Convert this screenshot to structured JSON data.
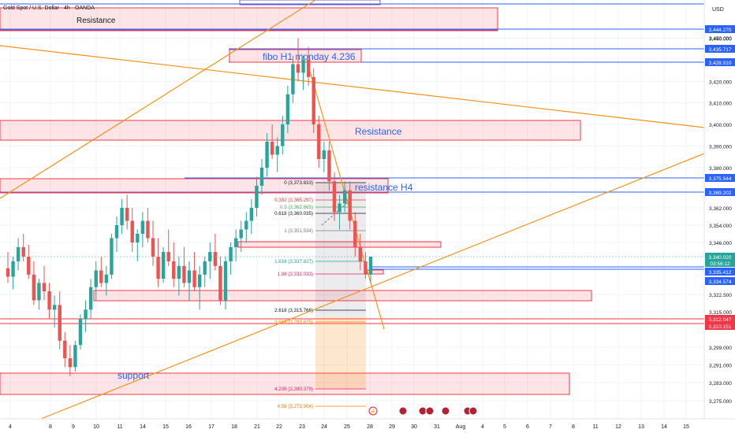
{
  "header": {
    "symbol_title": "Gold Spot / U.S. Dollar · 4h · OANDA"
  },
  "price_axis": {
    "currency": "USD",
    "ticks": [
      {
        "v": 3450.0,
        "label": "3,450.000"
      },
      {
        "v": 3440.0,
        "label": "3,440.000"
      },
      {
        "v": 3430.0,
        "label": "3,430.000"
      },
      {
        "v": 3420.0,
        "label": "3,420.000"
      },
      {
        "v": 3410.0,
        "label": "3,410.000"
      },
      {
        "v": 3400.0,
        "label": "3,400.000"
      },
      {
        "v": 3390.0,
        "label": "3,390.000"
      },
      {
        "v": 3380.0,
        "label": "3,380.000"
      },
      {
        "v": 3362.0,
        "label": "3,362.000"
      },
      {
        "v": 3354.0,
        "label": "3,354.000"
      },
      {
        "v": 3346.0,
        "label": "3,346.000"
      },
      {
        "v": 3322.5,
        "label": "3,322.500"
      },
      {
        "v": 3315.0,
        "label": "3,315.000"
      },
      {
        "v": 3299.0,
        "label": "3,299.000"
      },
      {
        "v": 3291.0,
        "label": "3,291.000"
      },
      {
        "v": 3283.0,
        "label": "3,283.000"
      },
      {
        "v": 3275.0,
        "label": "3,275.000"
      }
    ],
    "badges": [
      {
        "label": "3,444.270",
        "style": "blue"
      },
      {
        "label": "3,435.717",
        "style": "blue"
      },
      {
        "label": "3,428.910",
        "style": "blue"
      },
      {
        "label": "3,375.944",
        "style": "blue"
      },
      {
        "label": "3,369.202",
        "style": "blue"
      },
      {
        "label": "3,340.020",
        "style": "green"
      },
      {
        "label": "03:56:12",
        "style": "green"
      },
      {
        "label": "3,335.412",
        "style": "blue"
      },
      {
        "label": "3,334.574",
        "style": "blue"
      },
      {
        "label": "3,312.047",
        "style": "red"
      },
      {
        "label": "3,310.151",
        "style": "red"
      }
    ]
  },
  "time_axis": {
    "labels": [
      "4",
      "8",
      "9",
      "10",
      "11",
      "14",
      "15",
      "16",
      "17",
      "18",
      "21",
      "22",
      "23",
      "24",
      "25",
      "28",
      "29",
      "30",
      "31",
      "Aug",
      "4",
      "5",
      "6",
      "7",
      "8",
      "11",
      "12",
      "13",
      "14",
      "15"
    ]
  },
  "annotations": {
    "resistance_top": "Resistance",
    "fibo_label": "fibo H1 monday 4.236",
    "resistance_mid": "Resistance",
    "resistance_h4": "resistance H4",
    "support": "support"
  },
  "fib_levels": [
    {
      "ratio": "0",
      "price": "3,373.833",
      "text": "0 (3,373.833)",
      "color": "#131722"
    },
    {
      "ratio": "0.382",
      "price": "3,365.297",
      "text": "0.382 (3,365.297)",
      "color": "#e03c31"
    },
    {
      "ratio": "0.5",
      "price": "3,362.665",
      "text": "0.5 (3,362.665)",
      "color": "#4caf50"
    },
    {
      "ratio": "0.618",
      "price": "3,360.035",
      "text": "0.618 (3,360.035)",
      "color": "#131722"
    },
    {
      "ratio": "1",
      "price": "3,351.534",
      "text": "1 (3,351.534)",
      "color": "#787b86"
    },
    {
      "ratio": "1.618",
      "price": "3,337.827",
      "text": "1.618 (3,337.827)",
      "color": "#26a69a"
    },
    {
      "ratio": "1.88",
      "price": "3,332.033",
      "text": "1.88 (3,332.033)",
      "color": "#e91e63"
    },
    {
      "ratio": "2.618",
      "price": "3,315.766",
      "text": "2.618 (3,315.766)",
      "color": "#131722"
    },
    {
      "ratio": "3.618",
      "price": "3,293.625",
      "text": "3.618 (3,293.625)",
      "color": "#f57c00"
    },
    {
      "ratio": "4.236",
      "price": "3,280.379",
      "text": "4.236 (3,280.379)",
      "color": "#e91e63"
    },
    {
      "ratio": "4.58",
      "price": "3,272.904",
      "text": "4.58 (3,272.904)",
      "color": "#f57c00"
    }
  ],
  "colors": {
    "up": "#26a69a",
    "down": "#ef5350",
    "trendline": "#f7931a",
    "zone_fill": "rgba(242,54,69,0.13)",
    "zone_border": "#f23645",
    "level_blue": "#2962ff",
    "purple": "#7e57c2"
  },
  "chart_data": {
    "type": "candlestick",
    "instrument": "Gold Spot / U.S. Dollar",
    "timeframe": "4h",
    "source": "OANDA",
    "last_price": 3340.02,
    "candles": [
      [
        3335,
        3342,
        3328,
        3331
      ],
      [
        3331,
        3340,
        3325,
        3338
      ],
      [
        3338,
        3348,
        3334,
        3344
      ],
      [
        3344,
        3350,
        3338,
        3340
      ],
      [
        3340,
        3345,
        3330,
        3332
      ],
      [
        3332,
        3338,
        3318,
        3320
      ],
      [
        3320,
        3330,
        3316,
        3328
      ],
      [
        3328,
        3336,
        3320,
        3324
      ],
      [
        3324,
        3328,
        3312,
        3316
      ],
      [
        3316,
        3322,
        3308,
        3318
      ],
      [
        3318,
        3324,
        3298,
        3302
      ],
      [
        3302,
        3306,
        3290,
        3294
      ],
      [
        3294,
        3300,
        3286,
        3290
      ],
      [
        3290,
        3302,
        3288,
        3300
      ],
      [
        3300,
        3314,
        3298,
        3312
      ],
      [
        3312,
        3320,
        3306,
        3316
      ],
      [
        3316,
        3330,
        3312,
        3326
      ],
      [
        3326,
        3338,
        3320,
        3334
      ],
      [
        3334,
        3340,
        3326,
        3328
      ],
      [
        3328,
        3336,
        3322,
        3332
      ],
      [
        3332,
        3350,
        3330,
        3348
      ],
      [
        3348,
        3358,
        3342,
        3354
      ],
      [
        3354,
        3366,
        3350,
        3362
      ],
      [
        3362,
        3368,
        3352,
        3356
      ],
      [
        3356,
        3362,
        3342,
        3346
      ],
      [
        3346,
        3352,
        3338,
        3350
      ],
      [
        3350,
        3360,
        3344,
        3356
      ],
      [
        3356,
        3362,
        3346,
        3348
      ],
      [
        3348,
        3356,
        3336,
        3340
      ],
      [
        3340,
        3348,
        3326,
        3330
      ],
      [
        3330,
        3344,
        3328,
        3342
      ],
      [
        3342,
        3352,
        3336,
        3338
      ],
      [
        3338,
        3346,
        3326,
        3330
      ],
      [
        3330,
        3340,
        3322,
        3336
      ],
      [
        3336,
        3344,
        3326,
        3328
      ],
      [
        3328,
        3338,
        3320,
        3334
      ],
      [
        3334,
        3342,
        3324,
        3326
      ],
      [
        3326,
        3336,
        3316,
        3332
      ],
      [
        3332,
        3340,
        3326,
        3338
      ],
      [
        3338,
        3346,
        3330,
        3342
      ],
      [
        3342,
        3350,
        3334,
        3336
      ],
      [
        3336,
        3340,
        3318,
        3320
      ],
      [
        3320,
        3340,
        3316,
        3338
      ],
      [
        3338,
        3346,
        3332,
        3344
      ],
      [
        3344,
        3352,
        3338,
        3348
      ],
      [
        3348,
        3356,
        3342,
        3352
      ],
      [
        3352,
        3360,
        3346,
        3356
      ],
      [
        3356,
        3366,
        3350,
        3362
      ],
      [
        3362,
        3376,
        3358,
        3372
      ],
      [
        3372,
        3384,
        3368,
        3380
      ],
      [
        3380,
        3396,
        3376,
        3392
      ],
      [
        3392,
        3400,
        3384,
        3386
      ],
      [
        3386,
        3394,
        3378,
        3390
      ],
      [
        3390,
        3404,
        3386,
        3400
      ],
      [
        3400,
        3418,
        3396,
        3414
      ],
      [
        3414,
        3432,
        3410,
        3428
      ],
      [
        3428,
        3440,
        3420,
        3424
      ],
      [
        3424,
        3432,
        3416,
        3430
      ],
      [
        3430,
        3436,
        3418,
        3422
      ],
      [
        3422,
        3426,
        3396,
        3400
      ],
      [
        3400,
        3404,
        3380,
        3384
      ],
      [
        3384,
        3392,
        3378,
        3388
      ],
      [
        3388,
        3392,
        3370,
        3374
      ],
      [
        3374,
        3378,
        3356,
        3360
      ],
      [
        3360,
        3368,
        3352,
        3364
      ],
      [
        3364,
        3374,
        3360,
        3370
      ],
      [
        3370,
        3374,
        3352,
        3356
      ],
      [
        3356,
        3360,
        3340,
        3344
      ],
      [
        3344,
        3350,
        3334,
        3338
      ],
      [
        3338,
        3342,
        3330,
        3332
      ],
      [
        3332,
        3340,
        3328,
        3340
      ]
    ]
  }
}
